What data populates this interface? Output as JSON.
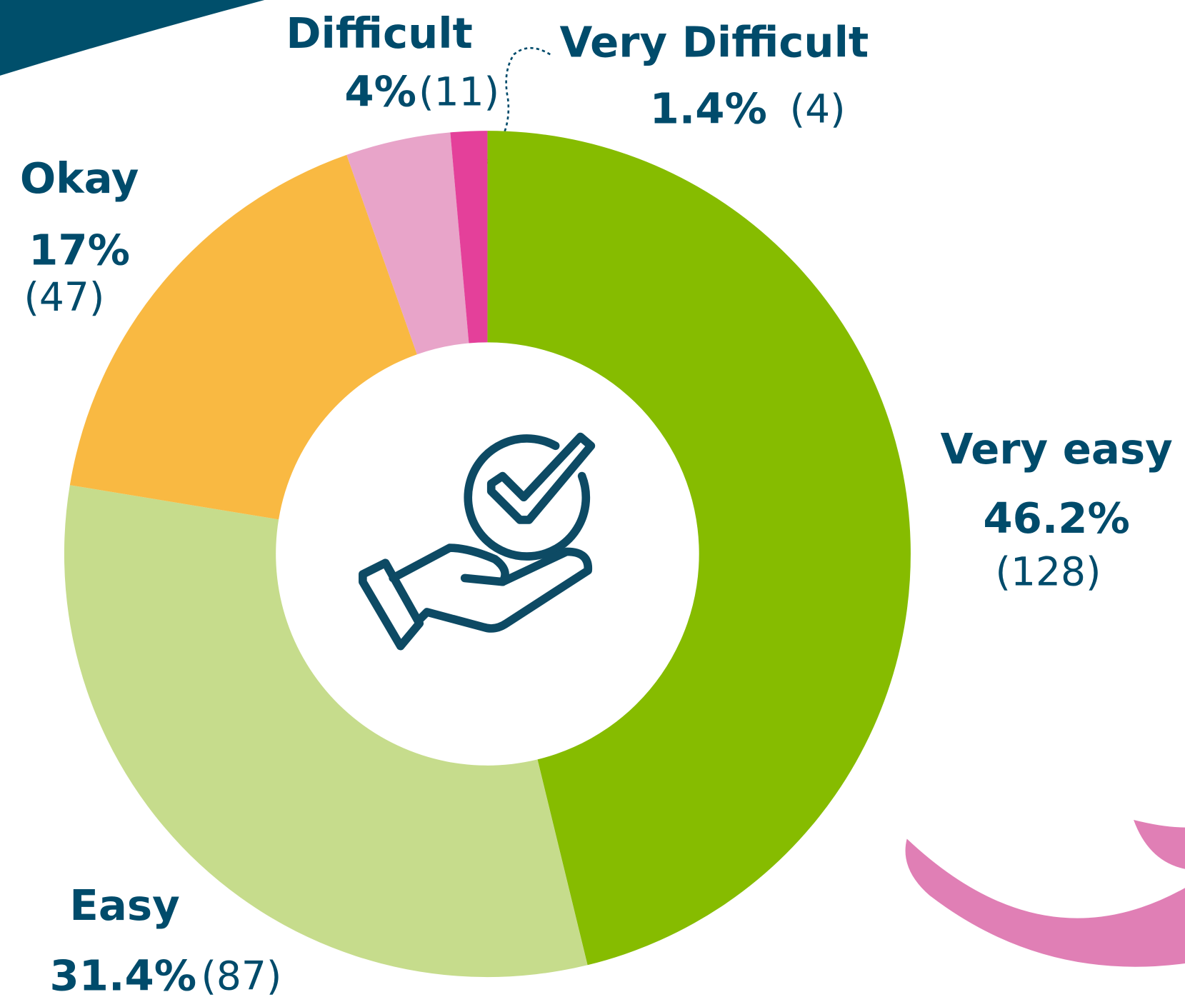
{
  "chart_data": {
    "type": "donut",
    "categories": [
      "Very easy",
      "Easy",
      "Okay",
      "Difficult",
      "Very Difficult"
    ],
    "values": [
      46.2,
      31.4,
      17,
      4,
      1.4
    ],
    "value_labels": [
      "46.2%",
      "31.4%",
      "17%",
      "4%",
      "1.4%"
    ],
    "counts": [
      128,
      87,
      47,
      11,
      4
    ],
    "count_labels": [
      "(128)",
      "(87)",
      "(47)",
      "(11)",
      "(4)"
    ],
    "colors": [
      "#86bc00",
      "#c6dc8c",
      "#f9b942",
      "#e8a4c9",
      "#e4409a"
    ]
  }
}
